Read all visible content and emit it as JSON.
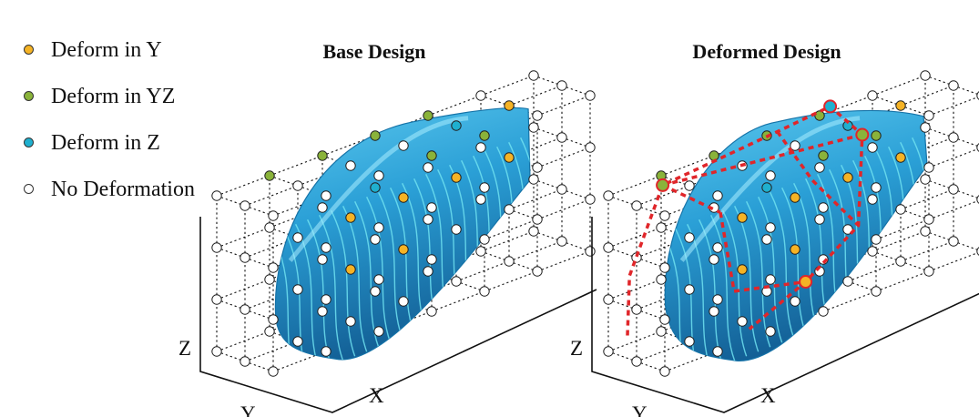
{
  "legend": [
    {
      "label": "Deform in Y",
      "color": "#f5b325"
    },
    {
      "label": "Deform in YZ",
      "color": "#8ab33a"
    },
    {
      "label": "Deform in Z",
      "color": "#1fb0cf"
    },
    {
      "label": "No Deformation",
      "color": "#ffffff"
    }
  ],
  "panels": {
    "base": {
      "title": "Base Design"
    },
    "deformed": {
      "title": "Deformed Design"
    }
  },
  "axes": {
    "x": "X",
    "y": "Y",
    "z": "Z"
  },
  "colors": {
    "body": "#2a9fd6",
    "body_dark": "#1573a8",
    "contour": "#6fe0f0",
    "grid": "#111111",
    "deform_cage": "#e0262a"
  }
}
